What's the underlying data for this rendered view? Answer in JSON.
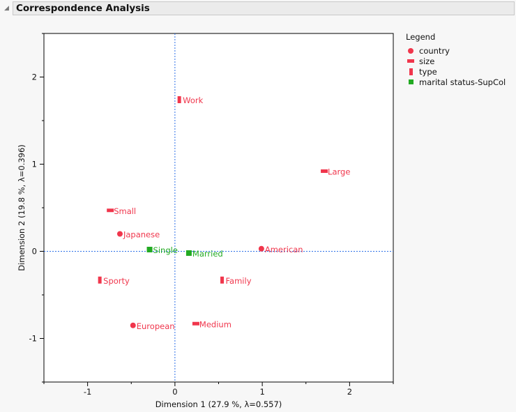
{
  "header": {
    "title": "Correspondence Analysis"
  },
  "legend": {
    "title": "Legend",
    "items": [
      {
        "label": "country",
        "marker": "circle",
        "color": "#f0364c"
      },
      {
        "label": "size",
        "marker": "hbar",
        "color": "#f0364c"
      },
      {
        "label": "type",
        "marker": "vbar",
        "color": "#f0364c"
      },
      {
        "label": "marital status-SupCol",
        "marker": "square",
        "color": "#22aa22"
      }
    ]
  },
  "chart_data": {
    "type": "scatter",
    "xlabel": "Dimension 1  (27.9 %, λ=0.557)",
    "ylabel": "Dimension 2  (19.8 %, λ=0.396)",
    "xlim": [
      -1.5,
      2.5
    ],
    "ylim": [
      -1.5,
      2.5
    ],
    "xticks": [
      "-1",
      "0",
      "1",
      "2"
    ],
    "yticks": [
      "-1",
      "0",
      "1",
      "2"
    ],
    "reference_lines": {
      "x": 0,
      "y": 0,
      "color": "#2a6ee8",
      "style": "dotted"
    },
    "points": [
      {
        "label": "Japanese",
        "group": "country",
        "x": -0.63,
        "y": 0.2
      },
      {
        "label": "American",
        "group": "country",
        "x": 0.99,
        "y": 0.03
      },
      {
        "label": "European",
        "group": "country",
        "x": -0.48,
        "y": -0.85
      },
      {
        "label": "Large",
        "group": "size",
        "x": 1.71,
        "y": 0.92
      },
      {
        "label": "Small",
        "group": "size",
        "x": -0.74,
        "y": 0.47
      },
      {
        "label": "Medium",
        "group": "size",
        "x": 0.24,
        "y": -0.83
      },
      {
        "label": "Work",
        "group": "type",
        "x": 0.05,
        "y": 1.74
      },
      {
        "label": "Sporty",
        "group": "type",
        "x": -0.86,
        "y": -0.33
      },
      {
        "label": "Family",
        "group": "type",
        "x": 0.54,
        "y": -0.33
      },
      {
        "label": "Single",
        "group": "marital status-SupCol",
        "x": -0.29,
        "y": 0.02
      },
      {
        "label": "Married",
        "group": "marital status-SupCol",
        "x": 0.16,
        "y": -0.02
      }
    ]
  }
}
